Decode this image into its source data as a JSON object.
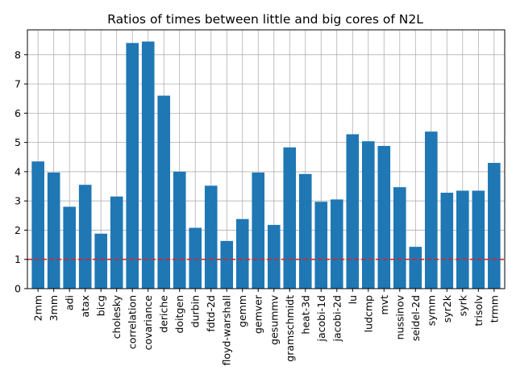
{
  "chart_data": {
    "type": "bar",
    "title": "Ratios of times between little and big cores of N2L",
    "xlabel": "",
    "ylabel": "",
    "categories": [
      "2mm",
      "3mm",
      "adi",
      "atax",
      "bicg",
      "cholesky",
      "correlation",
      "covariance",
      "deriche",
      "doitgen",
      "durbin",
      "fdtd-2d",
      "floyd-warshall",
      "gemm",
      "gemver",
      "gesummv",
      "gramschmidt",
      "heat-3d",
      "jacobi-1d",
      "jacobi-2d",
      "lu",
      "ludcmp",
      "mvt",
      "nussinov",
      "seidel-2d",
      "symm",
      "syr2k",
      "syrk",
      "trisolv",
      "trmm"
    ],
    "values": [
      4.35,
      3.97,
      2.8,
      3.55,
      1.88,
      3.15,
      8.4,
      8.45,
      6.6,
      4.0,
      2.08,
      3.52,
      1.63,
      2.38,
      3.97,
      2.18,
      4.83,
      3.92,
      2.97,
      3.05,
      5.28,
      5.04,
      4.88,
      3.47,
      1.43,
      5.37,
      3.28,
      3.35,
      3.35,
      4.3
    ],
    "ylim": [
      0,
      8.85
    ],
    "yticks": [
      0,
      1,
      2,
      3,
      4,
      5,
      6,
      7,
      8
    ],
    "grid": true,
    "bar_color": "#1f77b4",
    "reference_line": {
      "y": 1,
      "color": "#d62728",
      "style": "dashed"
    }
  }
}
